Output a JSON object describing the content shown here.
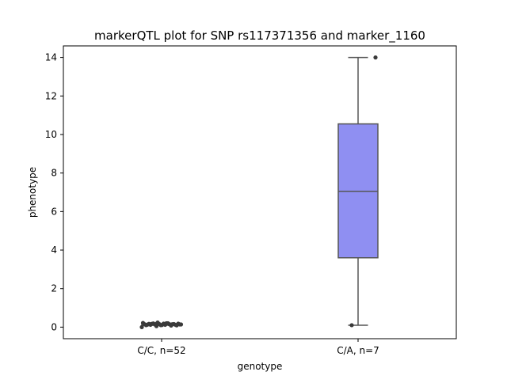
{
  "chart_data": {
    "type": "box",
    "title": "markerQTL plot for SNP rs117371356 and marker_1160",
    "xlabel": "genotype",
    "ylabel": "phenotype",
    "ylim": [
      -0.6,
      14.6
    ],
    "yticks": [
      0,
      2,
      4,
      6,
      8,
      10,
      12,
      14
    ],
    "categories": [
      "C/C, n=52",
      "C/A, n=7"
    ],
    "box_color": "#8f8ff2",
    "edge_color": "#555555",
    "boxes": [
      {
        "category": "C/C, n=52",
        "q1": 0.12,
        "median": 0.14,
        "q3": 0.16,
        "whisker_low": 0.1,
        "whisker_high": 0.18,
        "outliers": [
          0.0,
          0.05,
          0.08,
          0.1,
          0.1,
          0.12,
          0.12,
          0.12,
          0.14,
          0.14,
          0.15,
          0.15,
          0.16,
          0.16,
          0.17,
          0.18,
          0.18,
          0.19,
          0.2,
          0.22,
          0.24,
          0.15,
          0.13,
          0.11,
          0.09,
          0.17,
          0.2,
          0.14,
          0.16,
          0.12
        ]
      },
      {
        "category": "C/A, n=7",
        "q1": 3.6,
        "median": 7.05,
        "q3": 10.55,
        "whisker_low": 0.1,
        "whisker_high": 14.0,
        "outliers": [
          0.1,
          14.0
        ]
      }
    ]
  }
}
